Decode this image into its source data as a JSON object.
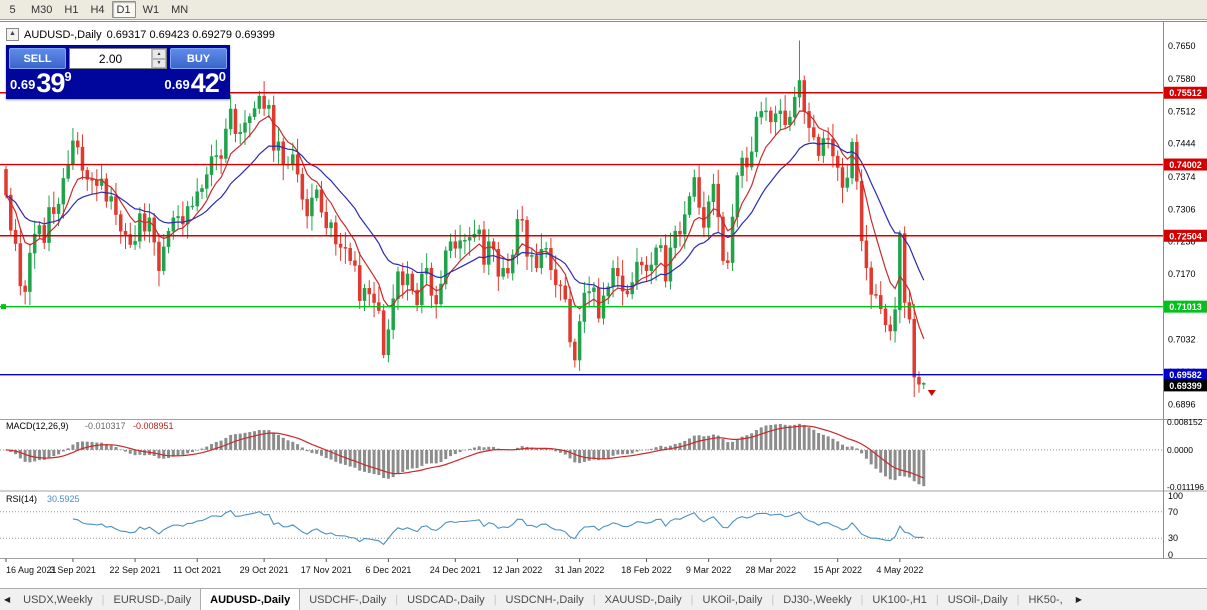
{
  "toolbar": {
    "timeframes": [
      {
        "label": "5",
        "active": false
      },
      {
        "label": "M30",
        "active": false
      },
      {
        "label": "H1",
        "active": false
      },
      {
        "label": "H4",
        "active": false
      },
      {
        "label": "D1",
        "active": true
      },
      {
        "label": "W1",
        "active": false
      },
      {
        "label": "MN",
        "active": false
      }
    ]
  },
  "chart": {
    "collapse_icon": "▲",
    "symbol_title": "AUDUSD-,Daily",
    "ohlc_text": "0.69317 0.69423 0.69279 0.69399"
  },
  "trade_panel": {
    "sell_label": "SELL",
    "buy_label": "BUY",
    "volume": "2.00",
    "spin_up_icon": "▲",
    "spin_down_icon": "▼",
    "sell_price": {
      "prefix": "0.69",
      "pips": "39",
      "pipette": "9"
    },
    "buy_price": {
      "prefix": "0.69",
      "pips": "42",
      "pipette": "0"
    }
  },
  "chart_data": {
    "type": "candlestick",
    "symbol": "AUDUSD-",
    "timeframe": "Daily",
    "current_ohlc": {
      "open": 0.69317,
      "high": 0.69423,
      "low": 0.69279,
      "close": 0.69399
    },
    "open_first": 0.739,
    "closes": [
      0.7336,
      0.7262,
      0.7234,
      0.7145,
      0.7133,
      0.7214,
      0.7254,
      0.7272,
      0.7236,
      0.731,
      0.7297,
      0.7317,
      0.7371,
      0.74,
      0.745,
      0.7437,
      0.7388,
      0.7369,
      0.7367,
      0.7356,
      0.737,
      0.7323,
      0.7333,
      0.7295,
      0.726,
      0.7253,
      0.7232,
      0.7239,
      0.7297,
      0.726,
      0.7288,
      0.7237,
      0.7177,
      0.7227,
      0.726,
      0.7288,
      0.7291,
      0.7275,
      0.7312,
      0.7313,
      0.7343,
      0.735,
      0.7379,
      0.7417,
      0.7419,
      0.7413,
      0.7475,
      0.7517,
      0.7465,
      0.7468,
      0.7488,
      0.7501,
      0.7518,
      0.7544,
      0.7518,
      0.7525,
      0.743,
      0.7448,
      0.74,
      0.7401,
      0.7421,
      0.738,
      0.7327,
      0.7292,
      0.733,
      0.7347,
      0.73,
      0.7267,
      0.7278,
      0.7233,
      0.7226,
      0.7224,
      0.7198,
      0.7188,
      0.7114,
      0.714,
      0.7128,
      0.711,
      0.7093,
      0.7,
      0.7053,
      0.7118,
      0.7175,
      0.7147,
      0.717,
      0.7136,
      0.7105,
      0.717,
      0.7182,
      0.7125,
      0.7107,
      0.7149,
      0.7219,
      0.7238,
      0.7224,
      0.724,
      0.7241,
      0.7247,
      0.7254,
      0.7263,
      0.719,
      0.7238,
      0.7222,
      0.7165,
      0.7182,
      0.7172,
      0.721,
      0.7285,
      0.7283,
      0.7207,
      0.7209,
      0.7183,
      0.7222,
      0.7224,
      0.7179,
      0.7147,
      0.7145,
      0.7117,
      0.7027,
      0.6989,
      0.707,
      0.713,
      0.7133,
      0.7141,
      0.7077,
      0.7124,
      0.7143,
      0.7182,
      0.7166,
      0.7134,
      0.7128,
      0.7152,
      0.7195,
      0.7189,
      0.7177,
      0.7189,
      0.7225,
      0.723,
      0.7155,
      0.7225,
      0.726,
      0.7254,
      0.7295,
      0.7333,
      0.7373,
      0.731,
      0.7268,
      0.7322,
      0.7359,
      0.729,
      0.7198,
      0.7194,
      0.729,
      0.7377,
      0.7414,
      0.7395,
      0.7427,
      0.75,
      0.7512,
      0.7513,
      0.749,
      0.7507,
      0.7513,
      0.7484,
      0.75,
      0.7542,
      0.7577,
      0.7512,
      0.7478,
      0.7458,
      0.7419,
      0.7455,
      0.7454,
      0.7418,
      0.7394,
      0.7352,
      0.7372,
      0.7447,
      0.7365,
      0.724,
      0.7183,
      0.7127,
      0.7125,
      0.7097,
      0.7063,
      0.705,
      0.7095,
      0.7255,
      0.711,
      0.7075,
      0.6953,
      0.6938,
      0.694
    ],
    "extremes": [
      {
        "i": 4,
        "l": 0.7106
      },
      {
        "i": 14,
        "h": 0.7477
      },
      {
        "i": 53,
        "h": 0.7555
      },
      {
        "i": 79,
        "l": 0.6993
      },
      {
        "i": 120,
        "l": 0.6966
      },
      {
        "i": 166,
        "h": 0.7661
      },
      {
        "i": 190,
        "l": 0.6911
      },
      {
        "i": 192,
        "h": 0.69423,
        "l": 0.69279
      }
    ],
    "x_ticks": {
      "labels": [
        "16 Aug 2021",
        "3 Sep 2021",
        "22 Sep 2021",
        "11 Oct 2021",
        "29 Oct 2021",
        "17 Nov 2021",
        "6 Dec 2021",
        "24 Dec 2021",
        "12 Jan 2022",
        "31 Jan 2022",
        "18 Feb 2022",
        "9 Mar 2022",
        "28 Mar 2022",
        "15 Apr 2022",
        "4 May 2022"
      ],
      "indices": [
        0,
        14,
        27,
        40,
        54,
        67,
        80,
        94,
        107,
        120,
        134,
        147,
        160,
        174,
        187
      ]
    },
    "y_ticks": [
      0.765,
      0.758,
      0.7512,
      0.7444,
      0.7374,
      0.7306,
      0.7238,
      0.717,
      0.7102,
      0.7032,
      0.6964,
      0.6896
    ],
    "y_range": [
      0.6865,
      0.77
    ],
    "hlines": [
      {
        "price": 0.75512,
        "badge": "0.75512",
        "color": "#D40000"
      },
      {
        "price": 0.74002,
        "badge": "0.74002",
        "color": "#D40000"
      },
      {
        "price": 0.72504,
        "badge": "0.72504",
        "color": "#D40000"
      },
      {
        "price": 0.71013,
        "badge": "0.71013",
        "color": "#00C21B",
        "selected": true
      },
      {
        "price": 0.69582,
        "badge": "0.69582",
        "color": "#0000C8"
      }
    ],
    "current_price_badge": "0.69399",
    "ma": [
      {
        "type": "ema",
        "period": 8,
        "color": "#C82A2A"
      },
      {
        "type": "ema",
        "period": 21,
        "color": "#2B2BB4"
      }
    ],
    "colors": {
      "up": "#1FA34A",
      "down": "#E0392E",
      "macd_hist": "#8C8C8C",
      "macd_signal": "#C82A2A",
      "rsi": "#4A90C2"
    },
    "indicators": {
      "macd": {
        "name": "MACD(12,26,9)",
        "main_value": "-0.010317",
        "signal_value": "-0.008951",
        "fast": 12,
        "slow": 26,
        "signal": 9,
        "axis_labels": [
          "0.008152",
          "0.0000",
          "-0.011196"
        ],
        "range": [
          -0.0118,
          0.0088
        ]
      },
      "rsi": {
        "name": "RSI(14)",
        "value": "30.5925",
        "period": 14,
        "axis_labels": [
          "100",
          "70",
          "30",
          "0"
        ],
        "levels": [
          70,
          30
        ]
      }
    }
  },
  "tabs": {
    "left_arrow": "◀",
    "right_arrow": "▶",
    "items": [
      {
        "label": "USDX,Weekly",
        "active": false
      },
      {
        "label": "EURUSD-,Daily",
        "active": false
      },
      {
        "label": "AUDUSD-,Daily",
        "active": true
      },
      {
        "label": "USDCHF-,Daily",
        "active": false
      },
      {
        "label": "USDCAD-,Daily",
        "active": false
      },
      {
        "label": "USDCNH-,Daily",
        "active": false
      },
      {
        "label": "XAUUSD-,Daily",
        "active": false
      },
      {
        "label": "UKOil-,Daily",
        "active": false
      },
      {
        "label": "DJ30-,Weekly",
        "active": false
      },
      {
        "label": "UK100-,H1",
        "active": false
      },
      {
        "label": "USOil-,Daily",
        "active": false
      },
      {
        "label": "HK50-,",
        "active": false
      }
    ]
  }
}
